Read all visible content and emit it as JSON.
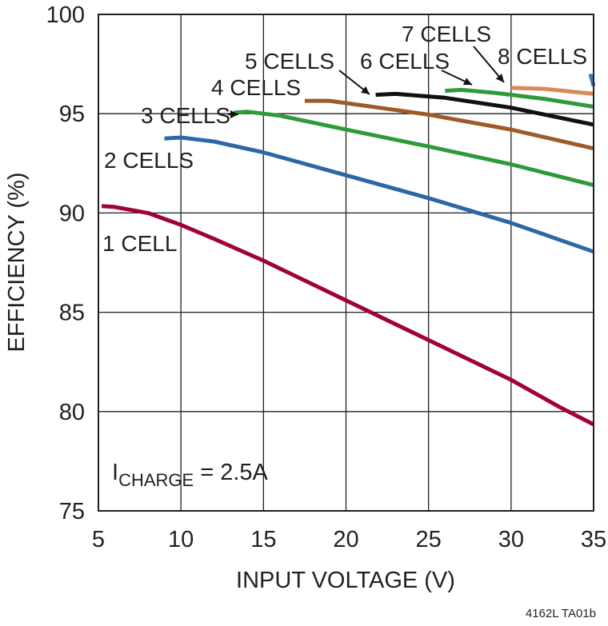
{
  "chart_data": {
    "type": "line",
    "xlabel": "INPUT VOLTAGE (V)",
    "ylabel": "EFFICIENCY (%)",
    "xlim": [
      5,
      35
    ],
    "ylim": [
      75,
      100
    ],
    "x_ticks": [
      5,
      10,
      15,
      20,
      25,
      30,
      35
    ],
    "y_ticks": [
      75,
      80,
      85,
      90,
      95,
      100
    ],
    "grid": true,
    "annotation": {
      "prefix": "I",
      "subscript": "CHARGE",
      "suffix": " = 2.5A"
    },
    "footer": "4162L TA01b",
    "series": [
      {
        "name": "1 CELL",
        "color": "#a0003c",
        "points": [
          [
            5.2,
            90.35
          ],
          [
            6,
            90.3
          ],
          [
            8,
            90.0
          ],
          [
            10,
            89.4
          ],
          [
            12,
            88.7
          ],
          [
            15,
            87.6
          ],
          [
            20,
            85.6
          ],
          [
            25,
            83.6
          ],
          [
            30,
            81.6
          ],
          [
            33,
            80.2
          ],
          [
            35,
            79.35
          ]
        ]
      },
      {
        "name": "2 CELLS",
        "color": "#2f67a6",
        "points": [
          [
            9,
            93.75
          ],
          [
            10,
            93.8
          ],
          [
            12,
            93.6
          ],
          [
            15,
            93.05
          ],
          [
            20,
            91.9
          ],
          [
            25,
            90.75
          ],
          [
            30,
            89.5
          ],
          [
            35,
            88.05
          ]
        ]
      },
      {
        "name": "3 CELLS",
        "color": "#2e9b3a",
        "points": [
          [
            13.2,
            95.05
          ],
          [
            14,
            95.1
          ],
          [
            16,
            94.9
          ],
          [
            20,
            94.2
          ],
          [
            25,
            93.35
          ],
          [
            30,
            92.45
          ],
          [
            35,
            91.4
          ]
        ]
      },
      {
        "name": "4 CELLS",
        "color": "#a05a28",
        "points": [
          [
            17.5,
            95.65
          ],
          [
            19,
            95.65
          ],
          [
            22,
            95.3
          ],
          [
            25,
            94.95
          ],
          [
            30,
            94.2
          ],
          [
            35,
            93.25
          ]
        ]
      },
      {
        "name": "5 CELLS",
        "color": "#111111",
        "points": [
          [
            21.8,
            95.95
          ],
          [
            23,
            96.0
          ],
          [
            26,
            95.8
          ],
          [
            30,
            95.3
          ],
          [
            35,
            94.45
          ]
        ]
      },
      {
        "name": "6 CELLS",
        "color": "#2e9b3a",
        "points": [
          [
            26,
            96.15
          ],
          [
            27,
            96.2
          ],
          [
            29,
            96.05
          ],
          [
            32,
            95.75
          ],
          [
            35,
            95.35
          ]
        ]
      },
      {
        "name": "7 CELLS",
        "color": "#d88a5a",
        "points": [
          [
            30,
            96.3
          ],
          [
            32,
            96.25
          ],
          [
            35,
            96.0
          ]
        ]
      },
      {
        "name": "8 CELLS",
        "color": "#3c78c0",
        "points": [
          [
            34.8,
            97.0
          ],
          [
            35,
            96.4
          ]
        ]
      }
    ],
    "labels": [
      "1 CELL",
      "2 CELLS",
      "3 CELLS",
      "4 CELLS",
      "5 CELLS",
      "6 CELLS",
      "7 CELLS",
      "8 CELLS"
    ]
  }
}
